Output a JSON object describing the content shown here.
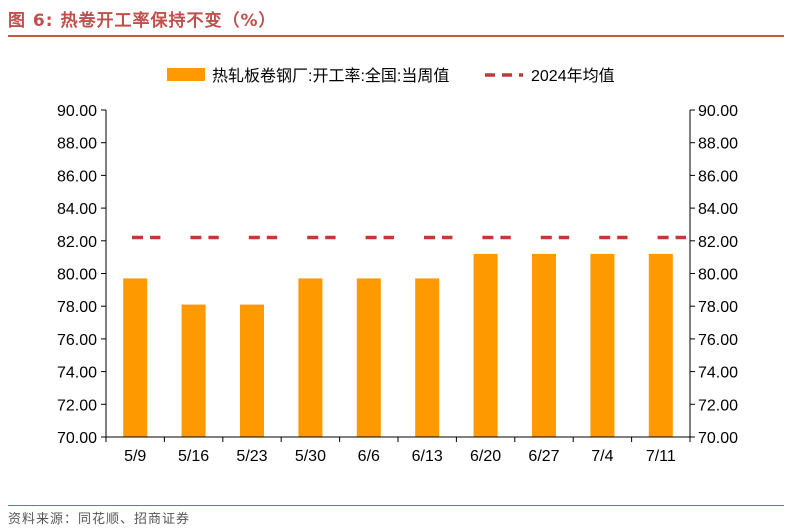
{
  "figure": {
    "title": "图 6:  热卷开工率保持不变（%）",
    "source": "资料来源：同花顺、招商证券"
  },
  "colors": {
    "bar": "#ff9900",
    "mean_line": "#c0393b",
    "title": "#c0504d",
    "rule": "#c55a3a"
  },
  "chart_data": {
    "type": "bar",
    "categories": [
      "5/9",
      "5/16",
      "5/23",
      "5/30",
      "6/6",
      "6/13",
      "6/20",
      "6/27",
      "7/4",
      "7/11"
    ],
    "series": [
      {
        "name": "热轧板卷钢厂:开工率:全国:当周值",
        "kind": "bar",
        "values": [
          79.7,
          78.1,
          78.1,
          79.7,
          79.7,
          79.7,
          81.2,
          81.2,
          81.2,
          81.2
        ]
      },
      {
        "name": "2024年均值",
        "kind": "dashed-line",
        "values": [
          82.2,
          82.2,
          82.2,
          82.2,
          82.2,
          82.2,
          82.2,
          82.2,
          82.2,
          82.2
        ]
      }
    ],
    "ylim": [
      70,
      90
    ],
    "yticks": [
      "70.00",
      "72.00",
      "74.00",
      "76.00",
      "78.00",
      "80.00",
      "82.00",
      "84.00",
      "86.00",
      "88.00",
      "90.00"
    ],
    "secondary_ylim": [
      70,
      90
    ],
    "secondary_yticks": [
      "70.00",
      "72.00",
      "74.00",
      "76.00",
      "78.00",
      "80.00",
      "82.00",
      "84.00",
      "86.00",
      "88.00",
      "90.00"
    ],
    "legend_position": "top-center",
    "grid": false,
    "xlabel": "",
    "ylabel": ""
  }
}
